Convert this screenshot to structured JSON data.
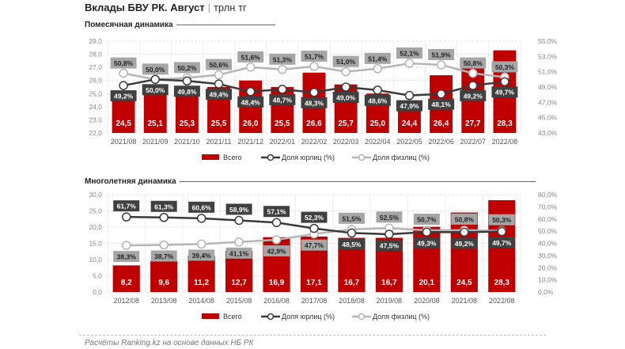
{
  "header": {
    "title": "Вклады БВУ РК. Август",
    "separator": "|",
    "unit": "трлн тг"
  },
  "source_note": "Расчёты Ranking.kz на основе данных НБ РК",
  "colors": {
    "bar": "#c00000",
    "legal_line": "#3a3a3a",
    "individual_line": "#b5b5b5",
    "legal_label_bg": "#404040",
    "individual_label_bg": "#a6a6a6"
  },
  "chart_data": [
    {
      "type": "bar",
      "title": "Помесячная динамика",
      "categories": [
        "2021/08",
        "2021/09",
        "2021/10",
        "2021/11",
        "2021/12",
        "2022/01",
        "2022/02",
        "2022/03",
        "2022/04",
        "2022/05",
        "2022/06",
        "2022/07",
        "2022/08"
      ],
      "bar_labels": [
        "24,5",
        "25,1",
        "25,3",
        "25,5",
        "26,0",
        "25,5",
        "26,6",
        "25,7",
        "25,0",
        "24,4",
        "26,4",
        "27,7",
        "28,3"
      ],
      "series": [
        {
          "name": "Всего",
          "kind": "bar",
          "axis": "left",
          "values": [
            24.5,
            25.1,
            25.3,
            25.5,
            26.0,
            25.5,
            26.6,
            25.7,
            25.0,
            24.4,
            26.4,
            27.7,
            28.3
          ]
        },
        {
          "name": "Доля юрлиц (%)",
          "kind": "line",
          "axis": "right",
          "values": [
            49.2,
            50.0,
            49.8,
            49.4,
            48.4,
            48.7,
            48.3,
            49.0,
            48.6,
            47.9,
            48.1,
            49.2,
            49.7
          ],
          "labels": [
            "49,2%",
            "50,0%",
            "49,8%",
            "49,4%",
            "48,4%",
            "48,7%",
            "48,3%",
            "49,0%",
            "48,6%",
            "47,9%",
            "48,1%",
            "49,2%",
            "49,7%"
          ]
        },
        {
          "name": "Доля физлиц (%)",
          "kind": "line",
          "axis": "right",
          "values": [
            50.8,
            50.0,
            50.2,
            50.6,
            51.6,
            51.3,
            51.7,
            51.0,
            51.4,
            52.1,
            51.9,
            50.8,
            50.3
          ],
          "labels": [
            "50,8%",
            "50,0%",
            "50,2%",
            "50,6%",
            "51,6%",
            "51,3%",
            "51,7%",
            "51,0%",
            "51,4%",
            "52,1%",
            "51,9%",
            "50,8%",
            "50,3%"
          ]
        }
      ],
      "ylim": [
        22,
        29
      ],
      "yticks": [
        "22,0",
        "23,0",
        "24,0",
        "25,0",
        "26,0",
        "27,0",
        "28,0",
        "29,0"
      ],
      "y2lim": [
        43,
        55
      ],
      "y2ticks": [
        "43,0%",
        "45,0%",
        "47,0%",
        "49,0%",
        "51,0%",
        "53,0%",
        "55,0%"
      ],
      "legend": [
        "Всего",
        "Доля юрлиц (%)",
        "Доля физлиц (%)"
      ],
      "legend_position": "bottom",
      "grid": true
    },
    {
      "type": "bar",
      "title": "Многолетняя динамика",
      "categories": [
        "2012/08",
        "2013/08",
        "2014/08",
        "2015/08",
        "2016/08",
        "2017/08",
        "2018/08",
        "2019/08",
        "2020/08",
        "2021/08",
        "2022/08"
      ],
      "bar_labels": [
        "8,2",
        "9,6",
        "11,2",
        "12,7",
        "16,9",
        "17,1",
        "16,7",
        "16,7",
        "20,1",
        "24,5",
        "28,3"
      ],
      "series": [
        {
          "name": "Всего",
          "kind": "bar",
          "axis": "left",
          "values": [
            8.2,
            9.6,
            11.2,
            12.7,
            16.9,
            17.1,
            16.7,
            16.7,
            20.1,
            24.5,
            28.3
          ]
        },
        {
          "name": "Доля юрлиц (%)",
          "kind": "line",
          "axis": "right",
          "values": [
            61.7,
            61.3,
            60.6,
            58.9,
            57.1,
            52.3,
            48.5,
            47.5,
            49.3,
            49.2,
            49.7
          ],
          "labels": [
            "61,7%",
            "61,3%",
            "60,6%",
            "58,9%",
            "57,1%",
            "52,3%",
            "48,5%",
            "47,5%",
            "49,3%",
            "49,2%",
            "49,7%"
          ]
        },
        {
          "name": "Доля физлиц (%)",
          "kind": "line",
          "axis": "right",
          "values": [
            38.3,
            38.7,
            39.4,
            41.1,
            42.9,
            47.7,
            51.5,
            52.5,
            50.7,
            50.8,
            50.3
          ],
          "labels": [
            "38,3%",
            "38,7%",
            "39,4%",
            "41,1%",
            "42,9%",
            "47,7%",
            "51,5%",
            "52,5%",
            "50,7%",
            "50,8%",
            "50,3%"
          ]
        }
      ],
      "ylim": [
        0,
        30
      ],
      "yticks": [
        "0,0",
        "5,0",
        "10,0",
        "15,0",
        "20,0",
        "25,0",
        "30,0"
      ],
      "y2lim": [
        0,
        80
      ],
      "y2ticks": [
        "0,0%",
        "10,0%",
        "20,0%",
        "30,0%",
        "40,0%",
        "50,0%",
        "60,0%",
        "70,0%",
        "80,0%"
      ],
      "legend": [
        "Всего",
        "Доля юрлиц (%)",
        "Доля физлиц (%)"
      ],
      "legend_position": "bottom",
      "grid": true
    }
  ]
}
